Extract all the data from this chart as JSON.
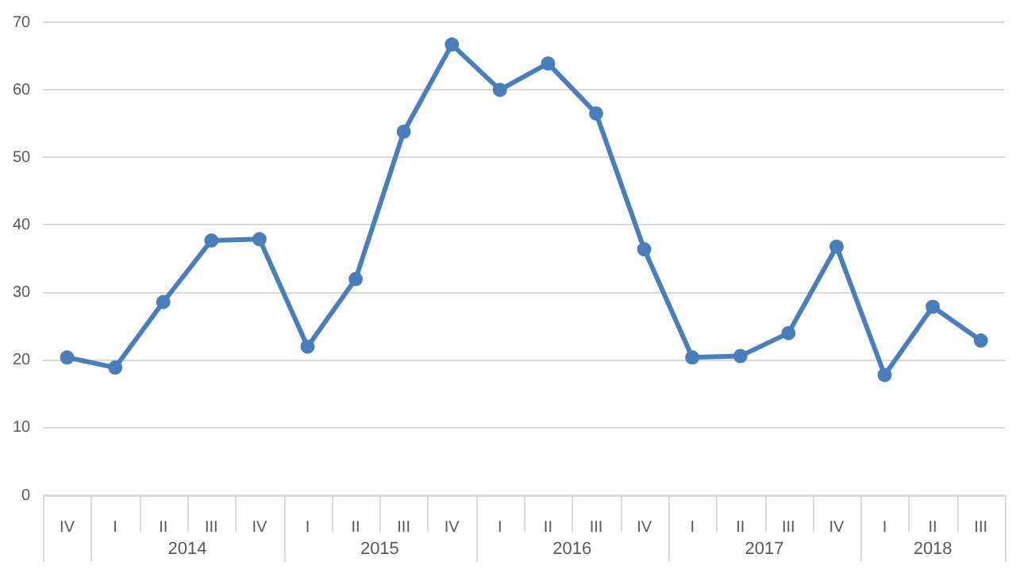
{
  "chart_data": {
    "type": "line",
    "categories": [
      "IV",
      "I",
      "II",
      "III",
      "IV",
      "I",
      "II",
      "III",
      "IV",
      "I",
      "II",
      "III",
      "IV",
      "I",
      "II",
      "III",
      "IV",
      "I",
      "II",
      "III"
    ],
    "series": [
      {
        "color": "#4a7ebb",
        "values": [
          20.4,
          18.9,
          28.6,
          37.7,
          37.9,
          22.0,
          32.0,
          53.8,
          66.7,
          60.0,
          63.9,
          56.5,
          36.4,
          20.4,
          20.6,
          24.0,
          36.8,
          17.8,
          27.9,
          22.9
        ]
      }
    ],
    "annotations": [
      "2014",
      "2015",
      "2016",
      "2017",
      "2018"
    ],
    "ylim": [
      0,
      70
    ],
    "yticks": [
      0,
      10,
      20,
      30,
      40,
      50,
      60,
      70
    ],
    "grid": "y",
    "legend": false,
    "marker": "circle",
    "line_style": "solid"
  }
}
